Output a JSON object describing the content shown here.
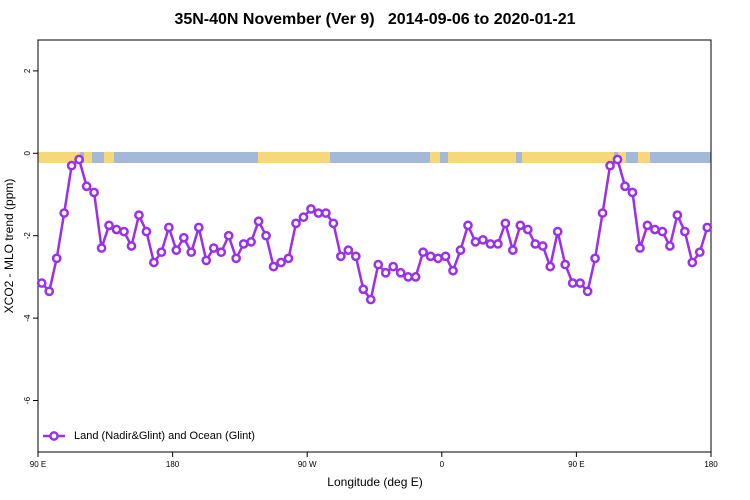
{
  "chart_data": {
    "type": "line",
    "title": "35N-40N November (Ver 9)   2014-09-06 to 2020-01-21",
    "x_label": "Longitude (deg E)",
    "y_label": "XCO2 - MLO trend (ppm)",
    "x": [
      92.5,
      97.5,
      102.5,
      107.5,
      112.5,
      117.5,
      122.5,
      127.5,
      132.5,
      137.5,
      142.5,
      147.5,
      152.5,
      157.5,
      162.5,
      167.5,
      172.5,
      177.5,
      182.5,
      187.5,
      192.5,
      197.5,
      202.5,
      207.5,
      212.5,
      217.5,
      222.5,
      227.5,
      232.5,
      237.5,
      242.5,
      247.5,
      252.5,
      257.5,
      262.5,
      267.5,
      272.5,
      277.5,
      282.5,
      287.5,
      292.5,
      297.5,
      302.5,
      307.5,
      312.5,
      317.5,
      322.5,
      327.5,
      332.5,
      337.5,
      342.5,
      347.5,
      352.5,
      357.5,
      362.5,
      367.5,
      372.5,
      377.5,
      382.5,
      387.5,
      392.5,
      397.5,
      402.5,
      407.5,
      412.5,
      417.5,
      422.5,
      427.5,
      432.5,
      437.5,
      442.5,
      447.5,
      452.5,
      457.5,
      462.5,
      467.5,
      472.5,
      477.5,
      482.5,
      487.5,
      492.5,
      497.5,
      502.5,
      507.5,
      512.5,
      517.5,
      522.5,
      527.5,
      532.5,
      537.5
    ],
    "series": [
      {
        "name": "Land (Nadir&Glint) and Ocean (Glint)",
        "color": "#9b30e6",
        "values": [
          -3.15,
          -3.35,
          -2.55,
          -1.45,
          -0.3,
          -0.15,
          -0.8,
          -0.95,
          -2.3,
          -1.75,
          -1.85,
          -1.9,
          -2.25,
          -1.5,
          -1.9,
          -2.65,
          -2.4,
          -1.8,
          -2.35,
          -2.05,
          -2.4,
          -1.8,
          -2.6,
          -2.3,
          -2.4,
          -2.0,
          -2.55,
          -2.2,
          -2.15,
          -1.65,
          -2.0,
          -2.75,
          -2.65,
          -2.55,
          -1.7,
          -1.55,
          -1.35,
          -1.45,
          -1.45,
          -1.7,
          -2.5,
          -2.35,
          -2.5,
          -3.3,
          -3.55,
          -2.7,
          -2.9,
          -2.75,
          -2.9,
          -3.0,
          -3.0,
          -2.4,
          -2.5,
          -2.55,
          -2.5,
          -2.85,
          -2.35,
          -1.75,
          -2.15,
          -2.1,
          -2.2,
          -2.2,
          -1.7,
          -2.35,
          -1.75,
          -1.85,
          -2.2,
          -2.25,
          -2.75,
          -1.9,
          -2.7,
          -3.15,
          -3.15,
          -3.35,
          -2.55,
          -1.45,
          -0.3,
          -0.15,
          -0.8,
          -0.95,
          -2.3,
          -1.75,
          -1.85,
          -1.9,
          -2.25,
          -1.5,
          -1.9,
          -2.65,
          -2.4,
          -1.8
        ]
      }
    ],
    "xlim": [
      90,
      540
    ],
    "xticks": [
      {
        "value": 90,
        "label": "90 E"
      },
      180,
      {
        "value": 270,
        "label": "90 W"
      },
      {
        "value": 360,
        "label": "0"
      },
      {
        "value": 450,
        "label": "90 E"
      },
      {
        "value": 540,
        "label": "180"
      }
    ],
    "ylim": [
      -7.25,
      2.75
    ],
    "yticks": [
      -6,
      -4,
      -2,
      0,
      2
    ],
    "legend": "bottom-left"
  }
}
